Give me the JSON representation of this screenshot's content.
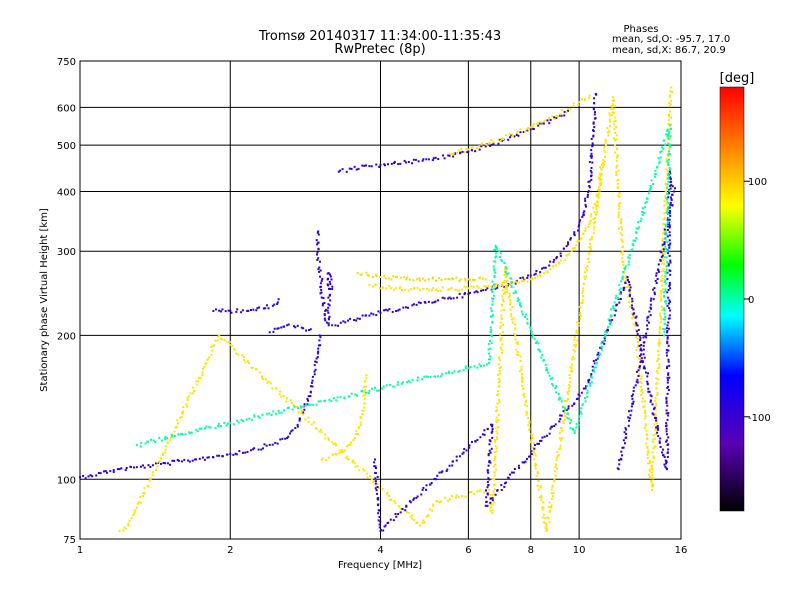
{
  "chart_data": {
    "type": "scatter",
    "title": "Tromsø 20140317 11:34:00-11:35:43",
    "subtitle": "RwPretec (8p)",
    "xlabel": "Frequency [MHz]",
    "ylabel": "Stationary phase Virtual Height [km]",
    "x_scale": "log",
    "y_scale": "log",
    "xlim": [
      1,
      16
    ],
    "ylim": [
      75,
      750
    ],
    "x_ticks": [
      1,
      2,
      4,
      6,
      8,
      10,
      16
    ],
    "y_ticks": [
      75,
      100,
      200,
      300,
      400,
      500,
      600,
      750
    ],
    "x_gridlines": [
      2,
      4,
      6,
      8,
      10
    ],
    "y_gridlines": [
      100,
      200,
      300,
      400,
      500,
      600
    ],
    "grid": true,
    "phases_box": {
      "heading": "Phases",
      "line_o": "mean, sd,O: -95.7, 17.0",
      "line_x": "mean, sd,X: 86.7, 20.9"
    },
    "colorbar": {
      "label": "[deg]",
      "range": [
        -180,
        180
      ],
      "ticks": [
        100,
        0,
        -100
      ],
      "colors": [
        "#ff0000",
        "#ff7f00",
        "#ffff00",
        "#00ff00",
        "#00ffff",
        "#0000ff",
        "#7f00ff",
        "#000000"
      ]
    },
    "traces": [
      {
        "phase": -95,
        "points": [
          [
            1.0,
            101
          ],
          [
            1.05,
            102
          ],
          [
            1.1,
            103
          ],
          [
            1.15,
            104
          ],
          [
            1.2,
            105
          ],
          [
            1.3,
            106
          ],
          [
            1.4,
            107
          ],
          [
            1.5,
            108
          ],
          [
            1.6,
            109
          ],
          [
            1.7,
            110
          ],
          [
            1.8,
            111
          ],
          [
            1.9,
            112
          ],
          [
            2.0,
            113
          ],
          [
            2.2,
            115
          ],
          [
            2.4,
            118
          ],
          [
            2.6,
            122
          ],
          [
            2.7,
            128
          ],
          [
            2.8,
            138
          ],
          [
            2.9,
            152
          ],
          [
            2.95,
            168
          ],
          [
            3.0,
            185
          ],
          [
            3.02,
            200
          ]
        ]
      },
      {
        "phase": 90,
        "points": [
          [
            3.05,
            110
          ],
          [
            3.15,
            111
          ],
          [
            3.25,
            113
          ],
          [
            3.35,
            115
          ],
          [
            3.45,
            118
          ],
          [
            3.55,
            122
          ],
          [
            3.62,
            128
          ],
          [
            3.68,
            137
          ],
          [
            3.72,
            150
          ],
          [
            3.75,
            165
          ]
        ]
      },
      {
        "phase": -95,
        "points": [
          [
            1.85,
            225
          ],
          [
            2.0,
            225
          ],
          [
            2.2,
            226
          ],
          [
            2.35,
            228
          ],
          [
            2.45,
            232
          ],
          [
            2.5,
            238
          ]
        ]
      },
      {
        "phase": -95,
        "points": [
          [
            2.4,
            203
          ],
          [
            2.5,
            207
          ],
          [
            2.6,
            210
          ],
          [
            2.7,
            208
          ],
          [
            2.8,
            207
          ],
          [
            2.9,
            206
          ]
        ]
      },
      {
        "phase": -95,
        "points": [
          [
            3.0,
            330
          ],
          [
            3.0,
            290
          ],
          [
            3.05,
            260
          ],
          [
            3.05,
            240
          ],
          [
            3.1,
            225
          ],
          [
            3.1,
            215
          ],
          [
            3.15,
            210
          ],
          [
            3.15,
            270
          ],
          [
            3.2,
            250
          ]
        ]
      },
      {
        "phase": -95,
        "points": [
          [
            3.2,
            210
          ],
          [
            3.4,
            213
          ],
          [
            3.6,
            217
          ],
          [
            3.8,
            220
          ],
          [
            4.0,
            223
          ],
          [
            4.5,
            229
          ],
          [
            5.0,
            235
          ],
          [
            5.5,
            240
          ],
          [
            6.0,
            244
          ],
          [
            6.5,
            249
          ],
          [
            7.0,
            254
          ],
          [
            7.5,
            260
          ],
          [
            8.0,
            267
          ],
          [
            8.5,
            277
          ],
          [
            9.0,
            290
          ],
          [
            9.5,
            310
          ],
          [
            10.0,
            340
          ],
          [
            10.3,
            375
          ],
          [
            10.5,
            420
          ],
          [
            10.65,
            500
          ],
          [
            10.75,
            580
          ],
          [
            10.8,
            640
          ]
        ]
      },
      {
        "phase": 95,
        "points": [
          [
            3.6,
            270
          ],
          [
            4.0,
            265
          ],
          [
            4.5,
            262
          ],
          [
            5.0,
            262
          ],
          [
            5.5,
            262
          ],
          [
            6.0,
            262
          ],
          [
            6.5,
            262
          ]
        ]
      },
      {
        "phase": 90,
        "points": [
          [
            3.8,
            255
          ],
          [
            4.2,
            251
          ],
          [
            4.6,
            250
          ],
          [
            5.0,
            249
          ],
          [
            5.5,
            250
          ],
          [
            6.0,
            251
          ],
          [
            6.5,
            253
          ],
          [
            7.0,
            255
          ],
          [
            7.5,
            258
          ],
          [
            8.0,
            262
          ],
          [
            8.5,
            270
          ],
          [
            9.0,
            280
          ],
          [
            9.5,
            295
          ],
          [
            10.0,
            315
          ],
          [
            10.5,
            345
          ],
          [
            10.8,
            375
          ],
          [
            11.0,
            415
          ],
          [
            11.1,
            455
          ]
        ]
      },
      {
        "phase": -95,
        "points": [
          [
            3.3,
            440
          ],
          [
            3.5,
            446
          ],
          [
            3.8,
            452
          ],
          [
            4.0,
            455
          ],
          [
            4.5,
            460
          ],
          [
            5.0,
            467
          ],
          [
            5.5,
            475
          ],
          [
            6.0,
            485
          ],
          [
            6.5,
            497
          ],
          [
            7.0,
            510
          ],
          [
            7.5,
            525
          ],
          [
            8.0,
            540
          ],
          [
            8.5,
            555
          ],
          [
            9.0,
            570
          ],
          [
            9.5,
            590
          ]
        ]
      },
      {
        "phase": 90,
        "points": [
          [
            5.5,
            480
          ],
          [
            6.0,
            490
          ],
          [
            6.5,
            502
          ],
          [
            7.0,
            515
          ],
          [
            7.5,
            530
          ],
          [
            8.0,
            545
          ],
          [
            8.5,
            560
          ],
          [
            9.0,
            575
          ],
          [
            9.5,
            595
          ],
          [
            10.0,
            615
          ],
          [
            10.5,
            635
          ]
        ]
      },
      {
        "phase": 90,
        "points": [
          [
            1.2,
            78
          ],
          [
            1.25,
            80
          ],
          [
            1.9,
            200
          ],
          [
            4.8,
            80
          ],
          [
            5.2,
            90
          ],
          [
            6.6,
            95
          ],
          [
            6.7,
            85
          ],
          [
            7.1,
            275
          ],
          [
            8.6,
            78
          ],
          [
            11.7,
            630
          ],
          [
            12.2,
            290
          ],
          [
            13.0,
            205
          ],
          [
            14.0,
            95
          ],
          [
            15.3,
            660
          ]
        ]
      },
      {
        "phase": -95,
        "points": [
          [
            3.9,
            110
          ],
          [
            4.0,
            78
          ],
          [
            6.7,
            130
          ],
          [
            6.5,
            88
          ],
          [
            10.3,
            155
          ],
          [
            12.5,
            265
          ],
          [
            14.5,
            120
          ],
          [
            15.0,
            105
          ],
          [
            15.2,
            440
          ],
          [
            15.5,
            400
          ],
          [
            12.0,
            105
          ]
        ]
      },
      {
        "phase": 0,
        "points": [
          [
            1.3,
            118
          ],
          [
            6.6,
            175
          ],
          [
            6.8,
            308
          ],
          [
            9.8,
            125
          ],
          [
            15.2,
            550
          ],
          [
            14.8,
            200
          ]
        ]
      }
    ]
  }
}
